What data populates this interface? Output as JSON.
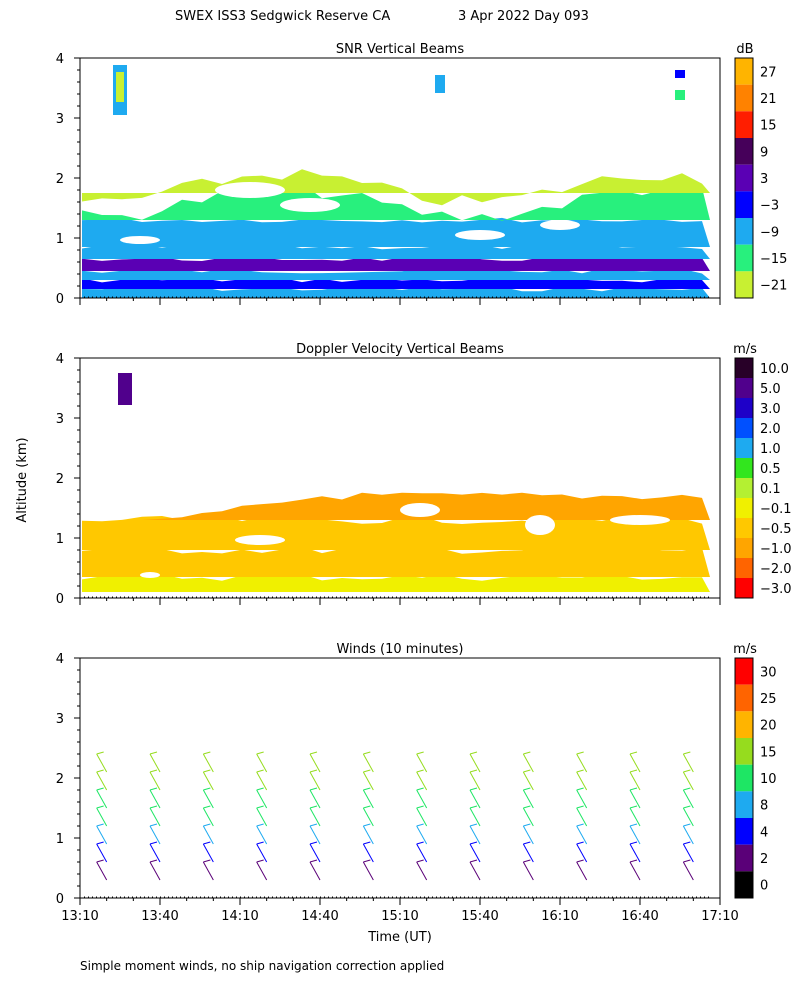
{
  "header": {
    "title": "SWEX ISS3 Sedgwick Reserve CA",
    "date": "3 Apr 2022 Day 093"
  },
  "xaxis": {
    "label": "Time (UT)",
    "ticks": [
      "13:10",
      "13:40",
      "14:10",
      "14:40",
      "15:10",
      "15:40",
      "16:10",
      "16:40",
      "17:10"
    ]
  },
  "yaxis": {
    "label": "Altitude (km)",
    "ticks": [
      "0",
      "1",
      "2",
      "3",
      "4"
    ]
  },
  "footnote": "Simple moment winds, no ship navigation correction applied",
  "chart_data": [
    {
      "type": "heatmap",
      "title": "SNR Vertical Beams",
      "xlabel": "Time (UT)",
      "ylabel": "Altitude (km)",
      "xlim": [
        "13:10",
        "17:10"
      ],
      "ylim": [
        0,
        4
      ],
      "colorbar": {
        "unit": "dB",
        "labels": [
          "27",
          "21",
          "15",
          "9",
          "3",
          "−3",
          "−9",
          "−15",
          "−21"
        ],
        "colors": [
          "#ffb400",
          "#ff8200",
          "#ff1e00",
          "#46005a",
          "#5a00b4",
          "#0000ff",
          "#1eaaf0",
          "#28f07d",
          "#c8f032"
        ]
      },
      "layers": [
        {
          "alt_km": [
            0.0,
            0.15
          ],
          "value_db": -9
        },
        {
          "alt_km": [
            0.15,
            0.3
          ],
          "value_db": -3
        },
        {
          "alt_km": [
            0.3,
            0.45
          ],
          "value_db": -9
        },
        {
          "alt_km": [
            0.45,
            0.65
          ],
          "value_db": 3
        },
        {
          "alt_km": [
            0.65,
            0.85
          ],
          "value_db": -9
        },
        {
          "alt_km": [
            0.85,
            1.3
          ],
          "value_db": -12
        },
        {
          "alt_km": [
            1.3,
            1.75
          ],
          "value_db": -17
        },
        {
          "alt_km": [
            1.75,
            2.0
          ],
          "value_db": -21
        }
      ]
    },
    {
      "type": "heatmap",
      "title": "Doppler Velocity Vertical Beams",
      "xlabel": "Time (UT)",
      "ylabel": "Altitude (km)",
      "xlim": [
        "13:10",
        "17:10"
      ],
      "ylim": [
        0,
        4
      ],
      "colorbar": {
        "unit": "m/s",
        "labels": [
          "10.0",
          "5.0",
          "3.0",
          "2.0",
          "1.0",
          "0.5",
          "0.1",
          "−0.1",
          "−0.5",
          "−1.0",
          "−2.0",
          "−3.0"
        ],
        "colors": [
          "#280028",
          "#50008c",
          "#1e00c8",
          "#0050ff",
          "#1eaaf0",
          "#32e61e",
          "#b4f032",
          "#f0f000",
          "#ffc800",
          "#ffa500",
          "#ff6400",
          "#ff0000"
        ]
      },
      "layers": [
        {
          "alt_km": [
            0.1,
            0.35
          ],
          "value_ms": -0.1
        },
        {
          "alt_km": [
            0.35,
            0.8
          ],
          "value_ms": -0.5
        },
        {
          "alt_km": [
            0.8,
            1.3
          ],
          "value_ms": -0.7
        },
        {
          "alt_km": [
            1.3,
            1.7
          ],
          "value_ms": -0.8
        }
      ]
    },
    {
      "type": "scatter",
      "title": "Winds (10 minutes)",
      "xlabel": "Time (UT)",
      "ylabel": "Altitude (km)",
      "xlim": [
        "13:10",
        "17:10"
      ],
      "ylim": [
        0,
        4
      ],
      "colorbar": {
        "unit": "m/s",
        "labels": [
          "30",
          "25",
          "20",
          "15",
          "10",
          "8",
          "4",
          "2",
          "0"
        ],
        "colors": [
          "#ff0000",
          "#ff6400",
          "#ffb400",
          "#96dc1e",
          "#1ee664",
          "#1eaaf0",
          "#0000ff",
          "#5a0078",
          "#000000"
        ]
      },
      "profiles_time_min": [
        10,
        30,
        50,
        70,
        90,
        110,
        130,
        150,
        170,
        190,
        210,
        230
      ],
      "speed_ms_by_alt_km": {
        "0.3": 2,
        "0.6": 6,
        "0.9": 9,
        "1.2": 11,
        "1.5": 14,
        "1.8": 17,
        "2.1": 19
      }
    }
  ]
}
